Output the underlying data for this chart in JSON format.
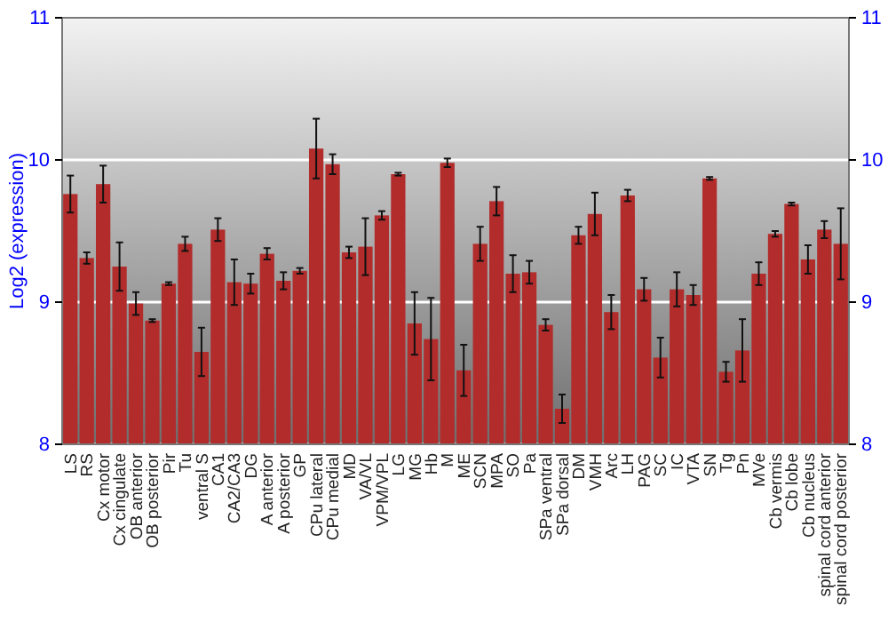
{
  "chart_data": {
    "type": "bar",
    "ylabel": "Log2 (expression)",
    "categories": [
      "LS",
      "RS",
      "Cx motor",
      "Cx cingulate",
      "OB anterior",
      "OB posterior",
      "Pir",
      "Tu",
      "ventral S",
      "CA1",
      "CA2/CA3",
      "DG",
      "A anterior",
      "A posterior",
      "GP",
      "CPu lateral",
      "CPu medial",
      "MD",
      "VA/VL",
      "VPM/VPL",
      "LG",
      "MG",
      "Hb",
      "M",
      "ME",
      "SCN",
      "MPA",
      "SO",
      "Pa",
      "SPa ventral",
      "SPa dorsal",
      "DM",
      "VMH",
      "Arc",
      "LH",
      "PAG",
      "SC",
      "IC",
      "VTA",
      "SN",
      "Tg",
      "Pn",
      "MVe",
      "Cb vermis",
      "Cb lobe",
      "Cb nucleus",
      "spinal cord anterior",
      "spinal cord posterior"
    ],
    "values": [
      9.76,
      9.31,
      9.83,
      9.25,
      8.99,
      8.87,
      9.13,
      9.41,
      8.65,
      9.51,
      9.14,
      9.13,
      9.34,
      9.15,
      9.22,
      10.08,
      9.97,
      9.35,
      9.39,
      9.61,
      9.9,
      8.85,
      8.74,
      9.98,
      8.52,
      9.41,
      9.71,
      9.2,
      9.21,
      8.84,
      8.25,
      9.47,
      9.62,
      8.93,
      9.75,
      9.09,
      8.61,
      9.09,
      9.05,
      9.87,
      8.51,
      8.66,
      9.2,
      9.48,
      9.69,
      9.3,
      9.51,
      9.41
    ],
    "errors": [
      0.13,
      0.04,
      0.13,
      0.17,
      0.08,
      0.01,
      0.01,
      0.05,
      0.17,
      0.08,
      0.16,
      0.07,
      0.04,
      0.06,
      0.02,
      0.21,
      0.07,
      0.04,
      0.2,
      0.03,
      0.01,
      0.22,
      0.29,
      0.03,
      0.18,
      0.12,
      0.1,
      0.13,
      0.08,
      0.04,
      0.1,
      0.06,
      0.15,
      0.12,
      0.04,
      0.08,
      0.14,
      0.12,
      0.07,
      0.01,
      0.07,
      0.22,
      0.08,
      0.02,
      0.01,
      0.1,
      0.06,
      0.25
    ],
    "color": "#b22c2c",
    "ylim": [
      8,
      11
    ],
    "yticks": [
      8,
      9,
      10,
      11
    ],
    "y2lim": [
      8,
      11
    ],
    "y2ticks": [
      8,
      9,
      10,
      11
    ],
    "grid": "y"
  }
}
